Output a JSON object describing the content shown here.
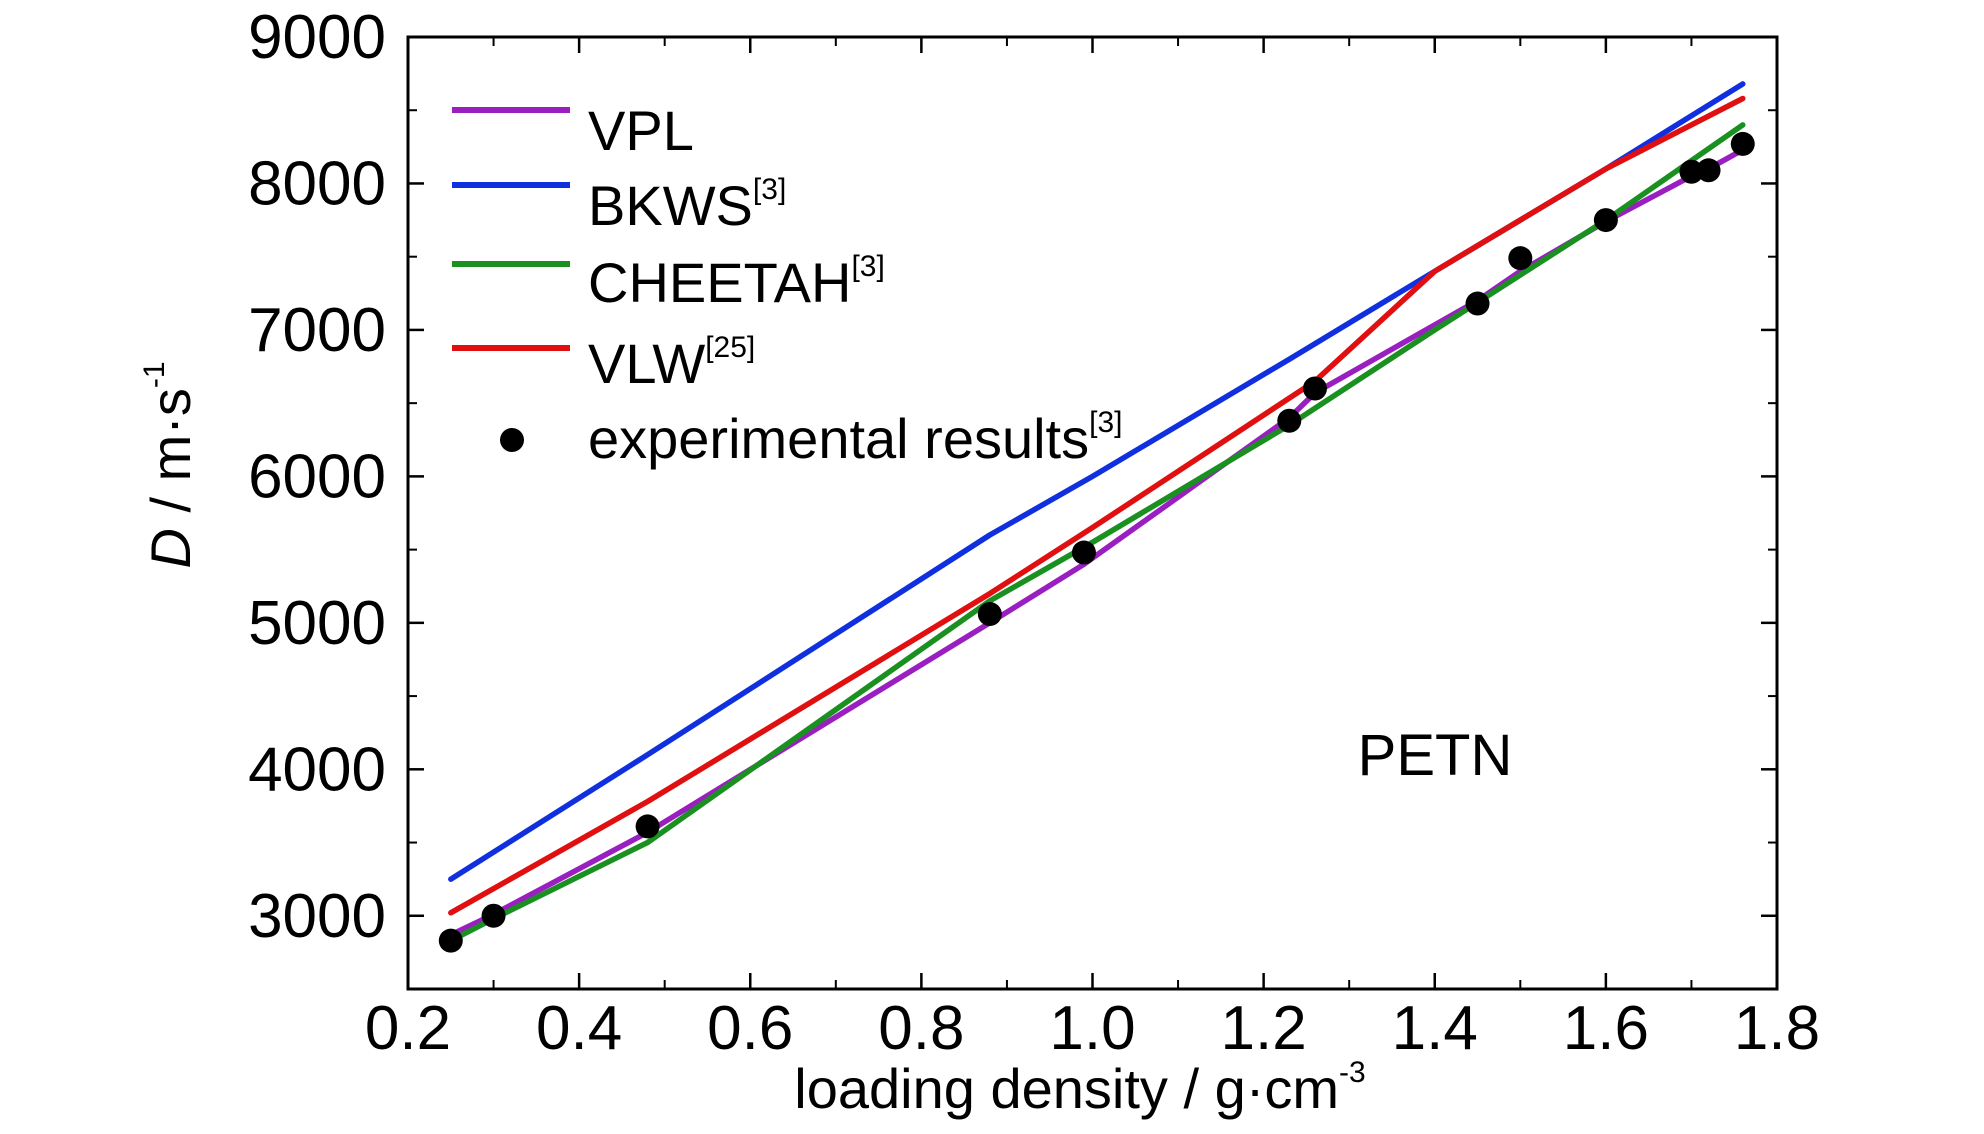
{
  "chart_data": {
    "type": "line",
    "xlabel": {
      "main": "loading density / g·cm",
      "sup": "-3"
    },
    "ylabel": {
      "italic": "D",
      "main": " / m·s",
      "sup": "-1"
    },
    "xlim": [
      0.2,
      1.8
    ],
    "ylim": [
      2500,
      9000
    ],
    "xticks": [
      0.2,
      0.4,
      0.6,
      0.8,
      1.0,
      1.2,
      1.4,
      1.6,
      1.8
    ],
    "xtick_labels": [
      "0.2",
      "0.4",
      "0.6",
      "0.8",
      "1.0",
      "1.2",
      "1.4",
      "1.6",
      "1.8"
    ],
    "yticks": [
      3000,
      4000,
      5000,
      6000,
      7000,
      8000,
      9000
    ],
    "ytick_labels": [
      "3000",
      "4000",
      "5000",
      "6000",
      "7000",
      "8000",
      "9000"
    ],
    "legend_position": "top-left",
    "annotation": "PETN",
    "series": [
      {
        "name": "VPL",
        "sup": "",
        "color": "#9a1fc0",
        "x": [
          0.25,
          0.3,
          0.48,
          0.88,
          0.99,
          1.23,
          1.26,
          1.45,
          1.5,
          1.6,
          1.7,
          1.72,
          1.76
        ],
        "y": [
          2870,
          3010,
          3570,
          5000,
          5400,
          6400,
          6570,
          7200,
          7400,
          7740,
          8050,
          8100,
          8230
        ]
      },
      {
        "name": "BKWS",
        "sup": "[3]",
        "color": "#1030e0",
        "x": [
          0.25,
          0.48,
          0.88,
          1.0,
          1.23,
          1.4,
          1.6,
          1.76
        ],
        "y": [
          3250,
          4100,
          5600,
          6000,
          6800,
          7400,
          8100,
          8680
        ]
      },
      {
        "name": "CHEETAH",
        "sup": "[3]",
        "color": "#1a9020",
        "x": [
          0.25,
          0.3,
          0.48,
          0.88,
          1.0,
          1.23,
          1.4,
          1.6,
          1.76
        ],
        "y": [
          2830,
          2980,
          3500,
          5150,
          5550,
          6350,
          7000,
          7750,
          8400
        ]
      },
      {
        "name": "VLW",
        "sup": "[25]",
        "color": "#e01010",
        "x": [
          0.25,
          0.48,
          0.88,
          1.0,
          1.26,
          1.4,
          1.6,
          1.76
        ],
        "y": [
          3020,
          3780,
          5200,
          5650,
          6650,
          7400,
          8100,
          8580
        ]
      }
    ],
    "scatter": {
      "name": "experimental results",
      "sup": "[3]",
      "color": "#000000",
      "x": [
        0.25,
        0.3,
        0.48,
        0.88,
        0.99,
        1.23,
        1.26,
        1.45,
        1.5,
        1.6,
        1.7,
        1.72,
        1.76
      ],
      "y": [
        2830,
        3000,
        3610,
        5060,
        5480,
        6380,
        6600,
        7180,
        7490,
        7750,
        8080,
        8090,
        8270
      ]
    }
  }
}
